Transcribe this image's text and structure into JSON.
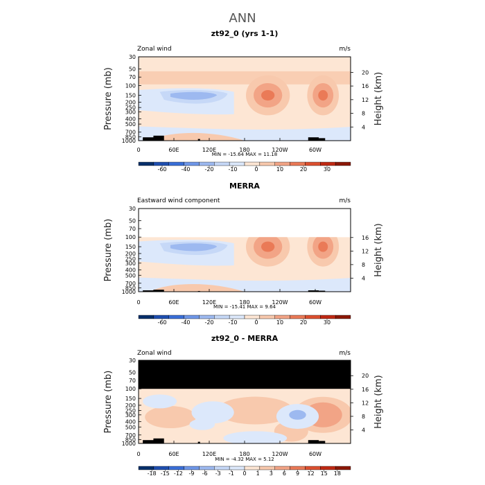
{
  "page": {
    "title": "ANN"
  },
  "chart_data": [
    {
      "type": "heatmap",
      "title": "zt92_0 (yrs 1-1)",
      "left_label": "Zonal wind",
      "units": "m/s",
      "ylabel": "Pressure (mb)",
      "ylabel_right": "Height (km)",
      "pressure_ticks": [
        "30",
        "50",
        "70",
        "100",
        "150",
        "200",
        "250",
        "300",
        "400",
        "500",
        "700",
        "850",
        "1000"
      ],
      "height_ticks": [
        "4",
        "8",
        "12",
        "16",
        "20"
      ],
      "x_ticks": [
        "0",
        "60E",
        "120E",
        "180",
        "120W",
        "60W"
      ],
      "stats": {
        "min": "-15.64",
        "max": "11.18",
        "text": "MIN = -15.64   MAX =  11.18"
      },
      "colorbar_labels": [
        "-60",
        "-40",
        "-20",
        "-10",
        "0",
        "10",
        "20",
        "30"
      ],
      "ylim_mb": [
        1000,
        30
      ]
    },
    {
      "type": "heatmap",
      "title": "MERRA",
      "left_label": "Eastward wind component",
      "units": "m/s",
      "ylabel": "Pressure (mb)",
      "ylabel_right": "Height (km)",
      "pressure_ticks": [
        "30",
        "50",
        "70",
        "100",
        "150",
        "200",
        "250",
        "300",
        "400",
        "500",
        "700",
        "850",
        "1000"
      ],
      "height_ticks": [
        "4",
        "8",
        "12",
        "16"
      ],
      "x_ticks": [
        "0",
        "60E",
        "120E",
        "180",
        "120W",
        "60W"
      ],
      "stats": {
        "min": "-15.41",
        "max": "9.64",
        "text": "MIN = -15.41   MAX =   9.64"
      },
      "colorbar_labels": [
        "-60",
        "-40",
        "-20",
        "-10",
        "0",
        "10",
        "20",
        "30"
      ],
      "ylim_mb": [
        1000,
        30
      ]
    },
    {
      "type": "heatmap",
      "title": "zt92_0 - MERRA",
      "left_label": "Zonal wind",
      "units": "m/s",
      "ylabel": "Pressure (mb)",
      "ylabel_right": "Height (km)",
      "pressure_ticks": [
        "30",
        "50",
        "70",
        "100",
        "150",
        "200",
        "250",
        "300",
        "400",
        "500",
        "700",
        "850",
        "1000"
      ],
      "height_ticks": [
        "4",
        "8",
        "12",
        "16",
        "20"
      ],
      "x_ticks": [
        "0",
        "60E",
        "120E",
        "180",
        "120W",
        "60W"
      ],
      "stats": {
        "min": "-4.32",
        "max": "5.12",
        "text": "MIN = -4.32   MAX =  5.12"
      },
      "colorbar_labels": [
        "-18",
        "-15",
        "-12",
        "-9",
        "-6",
        "-3",
        "-1",
        "0",
        "1",
        "3",
        "6",
        "9",
        "12",
        "15",
        "18"
      ],
      "ylim_mb": [
        1000,
        30
      ]
    }
  ],
  "colors": {
    "scale": [
      "#08306b",
      "#1f4fb0",
      "#3a6fd8",
      "#6f97e8",
      "#9db9f0",
      "#c6d8f7",
      "#dce8fb",
      "#fde6d4",
      "#f8c9ad",
      "#f2a486",
      "#ea7a57",
      "#dc5030",
      "#c02a14",
      "#8c1808"
    ],
    "missing": "#000000",
    "topography": "#000000"
  }
}
